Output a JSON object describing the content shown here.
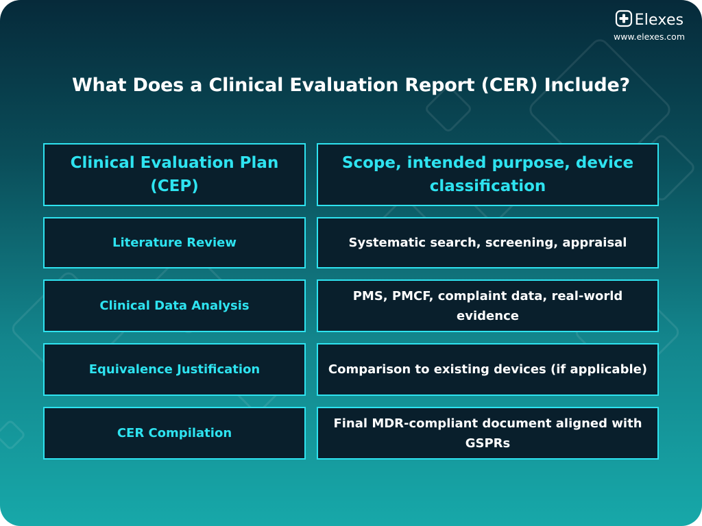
{
  "brand": {
    "name": "Elexes",
    "url": "www.elexes.com"
  },
  "title": "What Does a Clinical Evaluation Report (CER) Include?",
  "table": {
    "header": {
      "left": "Clinical Evaluation Plan (CEP)",
      "right": "Scope, intended purpose, device classification"
    },
    "rows": [
      {
        "left": "Literature Review",
        "right": "Systematic search, screening, appraisal"
      },
      {
        "left": "Clinical Data Analysis",
        "right": "PMS, PMCF, complaint data, real-world evidence"
      },
      {
        "left": "Equivalence Justification",
        "right": "Comparison to existing devices (if applicable)"
      },
      {
        "left": "CER Compilation",
        "right": "Final MDR-compliant document aligned with GSPRs"
      }
    ]
  },
  "colors": {
    "accent": "#2ee3f0",
    "cell_bg": "#091f2c",
    "text": "#ffffff"
  },
  "icons": {
    "brand": "medical-cross-icon"
  }
}
